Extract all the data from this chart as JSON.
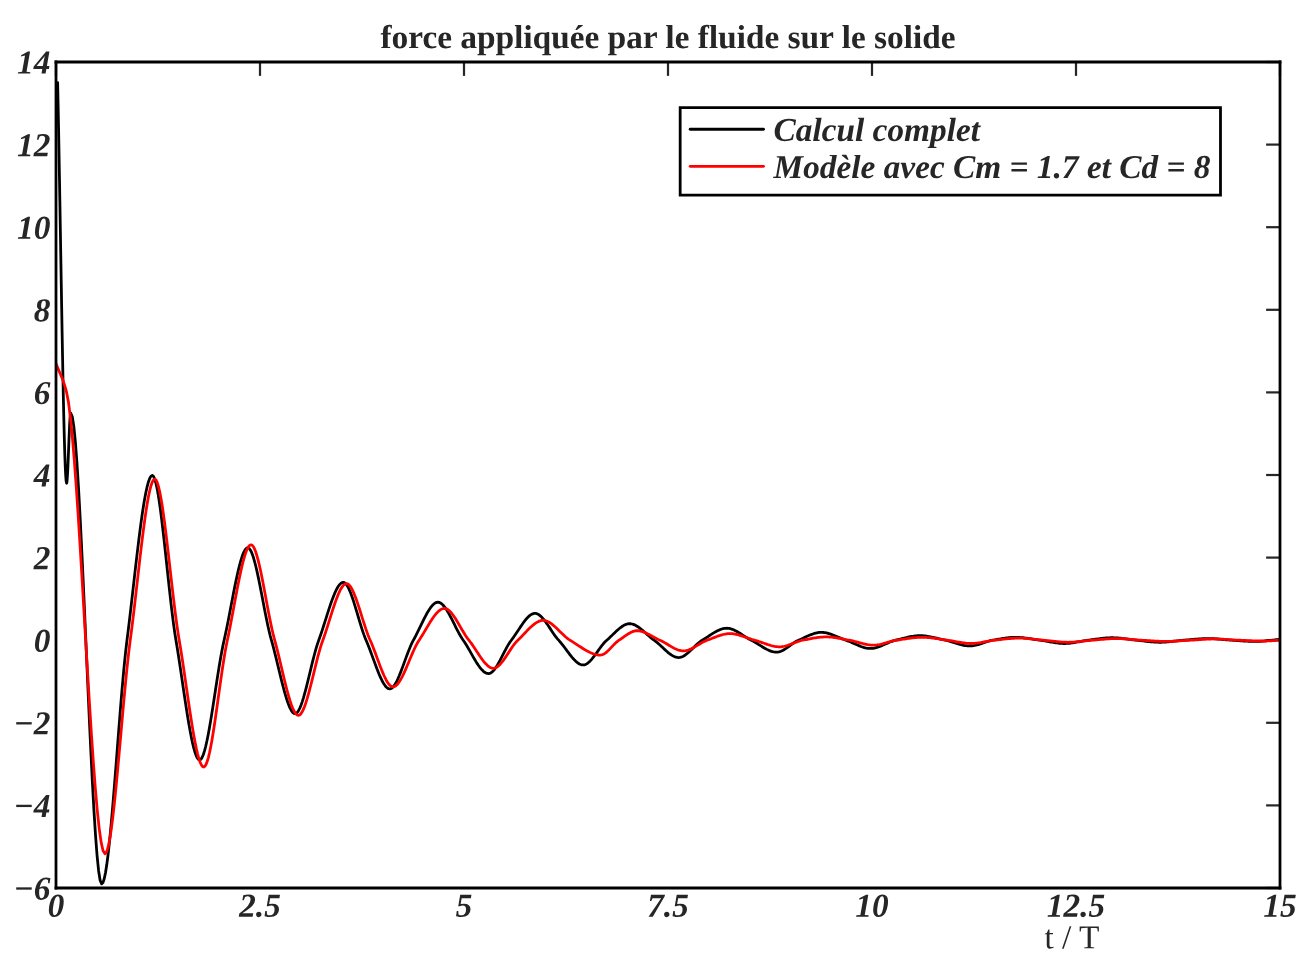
{
  "chart_data": {
    "type": "line",
    "title": "force appliquée par le fluide sur le solide",
    "xlabel": "t / T",
    "xlim": [
      0,
      15
    ],
    "xticks": [
      0,
      2.5,
      5,
      7.5,
      10,
      12.5,
      15
    ],
    "ylim": [
      -6,
      14
    ],
    "yticks": [
      {
        "value": -6,
        "label": "−6"
      },
      {
        "value": -4,
        "label": "−4"
      },
      {
        "value": -2,
        "label": "−2"
      },
      0,
      2,
      4,
      6,
      8,
      10,
      12,
      14
    ],
    "grid": false,
    "legend": "top right",
    "marker": "none",
    "line_style": "solid",
    "series": [
      {
        "name": "Calcul complet",
        "color": "#000000",
        "x": [
          0.02,
          0.13,
          0.18,
          0.56,
          0.87,
          1.18,
          1.47,
          1.76,
          2.06,
          2.35,
          2.64,
          2.93,
          3.22,
          3.52,
          3.8,
          4.09,
          4.38,
          4.68,
          4.99,
          5.3,
          5.58,
          5.87,
          6.16,
          6.46,
          6.75,
          7.03,
          7.33,
          7.63,
          7.92,
          8.22,
          8.52,
          8.83,
          9.1,
          9.38,
          9.68,
          9.98,
          10.29,
          10.59,
          10.9,
          11.2,
          11.48,
          11.76,
          12.06,
          12.36,
          12.65,
          12.94,
          13.24,
          13.53,
          13.82,
          14.12,
          14.41,
          14.7,
          15
        ],
        "values": [
          13.5,
          3.8,
          5.5,
          -5.9,
          0,
          3.99,
          0,
          -2.9,
          0,
          2.24,
          0,
          -1.78,
          0,
          1.4,
          0,
          -1.18,
          0,
          0.92,
          0,
          -0.81,
          0,
          0.65,
          0,
          -0.6,
          0,
          0.4,
          0,
          -0.42,
          0,
          0.29,
          0,
          -0.29,
          0,
          0.19,
          0,
          -0.2,
          0,
          0.11,
          0,
          -0.14,
          0,
          0.07,
          0,
          -0.08,
          0,
          0.06,
          0,
          -0.05,
          0,
          0.04,
          0,
          -0.03,
          0.02
        ]
      },
      {
        "name": "Modèle avec Cm = 1.7 et Cd = 8",
        "color": "#ff0000",
        "x": [
          0,
          0.13,
          0.6,
          0.91,
          1.21,
          1.51,
          1.81,
          2.1,
          2.39,
          2.68,
          2.97,
          3.27,
          3.56,
          3.85,
          4.13,
          4.45,
          4.76,
          5.06,
          5.36,
          5.66,
          5.97,
          6.3,
          6.67,
          6.9,
          7.12,
          7.4,
          7.69,
          7.98,
          8.26,
          8.56,
          8.87,
          9.15,
          9.44,
          9.72,
          10.02,
          10.3,
          10.62,
          10.92,
          11.22,
          11.5,
          11.8,
          12.1,
          12.4,
          12.7,
          13,
          13.3,
          13.6,
          13.9,
          14.2,
          14.5,
          14.8,
          15
        ],
        "values": [
          6.7,
          6.0,
          -5.17,
          0,
          3.9,
          0,
          -3.07,
          0,
          2.31,
          0,
          -1.82,
          0,
          1.37,
          0,
          -1.13,
          0,
          0.77,
          0,
          -0.68,
          0,
          0.48,
          0,
          -0.36,
          0,
          0.23,
          0,
          -0.26,
          0,
          0.16,
          0,
          -0.16,
          0,
          0.08,
          0,
          -0.12,
          0,
          0.07,
          0,
          -0.08,
          0,
          0.05,
          0,
          -0.05,
          0,
          0.04,
          0,
          -0.03,
          0,
          0.03,
          0,
          -0.02,
          0
        ]
      }
    ]
  }
}
